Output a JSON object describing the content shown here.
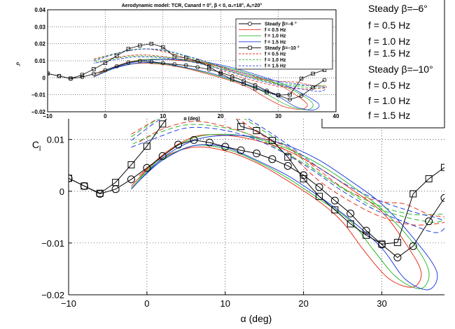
{
  "colors": {
    "steady": "#000000",
    "f05": "#e8321f",
    "f10": "#2fb82f",
    "f15": "#1f3fe0"
  },
  "legend_large": {
    "entries": [
      "Steady β=–6°",
      "f = 0.5 Hz",
      "f = 1.0 Hz",
      "f = 1.5 Hz",
      "Steady β=–10°",
      "f = 0.5 Hz",
      "f = 1.0 Hz",
      "f = 1.5 Hz"
    ]
  },
  "chart_data": [
    {
      "type": "line",
      "panel": "main",
      "title": "",
      "xlabel": "α (deg)",
      "ylabel": "C_l",
      "xlim": [
        -10,
        38
      ],
      "ylim": [
        -0.02,
        0.014
      ],
      "xticks": [
        "−10",
        "0",
        "10",
        "20",
        "30"
      ],
      "yticks": [
        "−0.02",
        "−0.01",
        "0",
        "0.01"
      ],
      "grid": true,
      "series": [
        {
          "name": "Steady β=–6°",
          "style": "circle",
          "x": [
            -10,
            -8,
            -6,
            -4,
            -2,
            0,
            2,
            4,
            6,
            8,
            10,
            12,
            14,
            16,
            18,
            20,
            22,
            24,
            26,
            28,
            30,
            32,
            34,
            36,
            38
          ],
          "y": [
            0.0025,
            0.001,
            -0.0005,
            0.0004,
            0.0023,
            0.0045,
            0.0068,
            0.009,
            0.0099,
            0.0094,
            0.0086,
            0.0079,
            0.0073,
            0.0062,
            0.0049,
            0.0031,
            0.0008,
            -0.0018,
            -0.0043,
            -0.0076,
            -0.0103,
            -0.0128,
            -0.0106,
            -0.0058,
            -0.0013
          ]
        },
        {
          "name": "Steady β=–10°",
          "style": "square",
          "x": [
            -10,
            -8,
            -6,
            -4,
            -2,
            0,
            2,
            4,
            6,
            8,
            10,
            12,
            14,
            16,
            18,
            20,
            22,
            24,
            26,
            28,
            30,
            32,
            34,
            36,
            38
          ],
          "y": [
            0.0025,
            0.001,
            -0.0004,
            0.0017,
            0.0051,
            0.0087,
            0.013,
            0.017,
            0.019,
            0.02,
            0.018,
            0.0125,
            0.0117,
            0.0098,
            0.0066,
            0.0024,
            -0.001,
            -0.0036,
            -0.0063,
            -0.0085,
            -0.0102,
            -0.0099,
            -0.0005,
            0.0024,
            0.0046
          ]
        },
        {
          "name": "f = 0.5 Hz",
          "style": "solid",
          "loop": true
        },
        {
          "name": "f = 1.0 Hz",
          "style": "solid",
          "loop": true
        },
        {
          "name": "f = 1.5 Hz",
          "style": "solid",
          "loop": true
        },
        {
          "name": "f = 0.5 Hz",
          "style": "dashed",
          "loop": true
        },
        {
          "name": "f = 1.0 Hz",
          "style": "dashed",
          "loop": true
        },
        {
          "name": "f = 1.5 Hz",
          "style": "dashed",
          "loop": true
        }
      ]
    },
    {
      "type": "line",
      "panel": "inset",
      "title": "Aerodynamic model: TCR, Canard = 0°, β < 0, α₀=18°, Aₓ=20°",
      "xlabel": "α (deg)",
      "ylabel": "C_l",
      "xlim": [
        -10,
        40
      ],
      "ylim": [
        -0.02,
        0.04
      ],
      "xticks": [
        "−10",
        "0",
        "10",
        "20",
        "30",
        "40"
      ],
      "yticks": [
        "−0.02",
        "−0.01",
        "0",
        "0.01",
        "0.02",
        "0.03",
        "0.04"
      ],
      "legend": [
        "Steady β=–6 °",
        "f = 0.5 Hz",
        "f = 1.0 Hz",
        "f = 1.5 Hz",
        "Steady β=–10 °",
        "f = 0.5 Hz",
        "f = 1.0 Hz",
        "f = 1.5 Hz"
      ]
    }
  ]
}
